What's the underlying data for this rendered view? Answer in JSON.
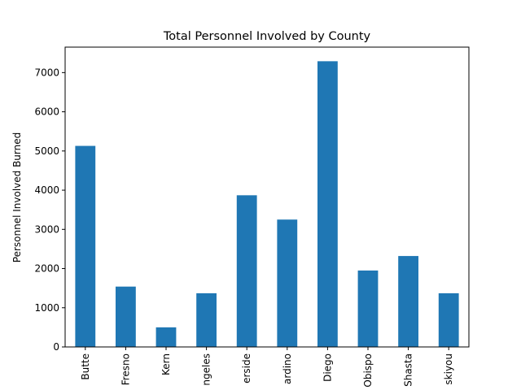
{
  "chart_data": {
    "type": "bar",
    "title": "Total Personnel Involved by County",
    "xlabel": "",
    "ylabel": "Personnel Involved Burned",
    "categories": [
      "Butte",
      "Fresno",
      "Kern",
      "ngeles",
      "erside",
      "ardino",
      "Diego",
      "Obispo",
      "Shasta",
      "skiyou"
    ],
    "values": [
      5130,
      1540,
      500,
      1370,
      3870,
      3250,
      7290,
      1950,
      2320,
      1370
    ],
    "yticks": [
      0,
      1000,
      2000,
      3000,
      4000,
      5000,
      6000,
      7000
    ],
    "ylim": [
      0,
      7650
    ],
    "grid": false,
    "legend": "none",
    "bar_color": "#1f77b4"
  }
}
